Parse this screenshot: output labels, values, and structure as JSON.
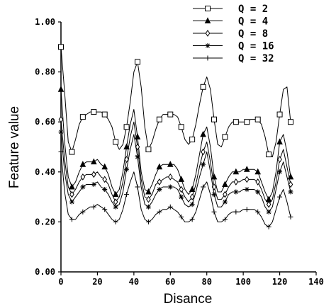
{
  "chart_data": {
    "type": "line",
    "title": "",
    "xlabel": "Disance",
    "ylabel": "Feature value",
    "xlim": [
      0,
      140
    ],
    "ylim": [
      0,
      1
    ],
    "xticks": [
      "0",
      "20",
      "40",
      "60",
      "80",
      "100",
      "120",
      "140"
    ],
    "yticks": [
      "0.00",
      "0.20",
      "0.40",
      "0.60",
      "0.80",
      "1.00"
    ],
    "legend_position": "top-right",
    "grid": false,
    "x": [
      0,
      2,
      4,
      6,
      8,
      10,
      12,
      14,
      16,
      18,
      20,
      22,
      24,
      26,
      28,
      30,
      32,
      34,
      36,
      38,
      40,
      42,
      44,
      46,
      48,
      50,
      52,
      54,
      56,
      58,
      60,
      62,
      64,
      66,
      68,
      70,
      72,
      74,
      76,
      78,
      80,
      82,
      84,
      86,
      88,
      90,
      92,
      94,
      96,
      98,
      100,
      102,
      104,
      106,
      108,
      110,
      112,
      114,
      116,
      118,
      120,
      122,
      124,
      126
    ],
    "series": [
      {
        "name": "Q =  2",
        "marker": "square",
        "values": [
          0.9,
          0.72,
          0.52,
          0.48,
          0.53,
          0.59,
          0.62,
          0.63,
          0.64,
          0.64,
          0.64,
          0.64,
          0.63,
          0.61,
          0.58,
          0.52,
          0.49,
          0.51,
          0.58,
          0.68,
          0.8,
          0.84,
          0.74,
          0.58,
          0.49,
          0.52,
          0.57,
          0.61,
          0.63,
          0.63,
          0.63,
          0.63,
          0.62,
          0.58,
          0.53,
          0.51,
          0.53,
          0.59,
          0.67,
          0.74,
          0.78,
          0.73,
          0.61,
          0.51,
          0.5,
          0.54,
          0.58,
          0.6,
          0.6,
          0.6,
          0.6,
          0.6,
          0.61,
          0.61,
          0.61,
          0.59,
          0.54,
          0.47,
          0.46,
          0.52,
          0.63,
          0.73,
          0.74,
          0.6
        ]
      },
      {
        "name": "Q =  4",
        "marker": "triangle",
        "values": [
          0.73,
          0.52,
          0.38,
          0.34,
          0.36,
          0.4,
          0.43,
          0.44,
          0.44,
          0.44,
          0.45,
          0.43,
          0.42,
          0.39,
          0.34,
          0.31,
          0.33,
          0.4,
          0.5,
          0.59,
          0.65,
          0.54,
          0.4,
          0.33,
          0.32,
          0.35,
          0.39,
          0.42,
          0.43,
          0.43,
          0.43,
          0.43,
          0.41,
          0.37,
          0.33,
          0.31,
          0.33,
          0.39,
          0.47,
          0.55,
          0.58,
          0.5,
          0.38,
          0.32,
          0.32,
          0.35,
          0.38,
          0.4,
          0.4,
          0.4,
          0.41,
          0.41,
          0.41,
          0.41,
          0.4,
          0.36,
          0.32,
          0.29,
          0.32,
          0.4,
          0.52,
          0.55,
          0.48,
          0.38
        ]
      },
      {
        "name": "Q =  8",
        "marker": "diamond",
        "values": [
          0.61,
          0.45,
          0.34,
          0.31,
          0.33,
          0.36,
          0.38,
          0.39,
          0.39,
          0.39,
          0.4,
          0.38,
          0.37,
          0.35,
          0.31,
          0.28,
          0.3,
          0.36,
          0.45,
          0.54,
          0.6,
          0.5,
          0.37,
          0.3,
          0.29,
          0.31,
          0.35,
          0.36,
          0.37,
          0.38,
          0.38,
          0.37,
          0.36,
          0.33,
          0.3,
          0.28,
          0.3,
          0.35,
          0.42,
          0.48,
          0.52,
          0.44,
          0.34,
          0.29,
          0.29,
          0.31,
          0.34,
          0.36,
          0.36,
          0.36,
          0.37,
          0.37,
          0.37,
          0.37,
          0.36,
          0.33,
          0.29,
          0.27,
          0.29,
          0.36,
          0.45,
          0.49,
          0.42,
          0.35
        ]
      },
      {
        "name": "Q = 16",
        "marker": "asterisk",
        "values": [
          0.56,
          0.4,
          0.31,
          0.28,
          0.3,
          0.32,
          0.34,
          0.35,
          0.35,
          0.35,
          0.36,
          0.34,
          0.33,
          0.31,
          0.28,
          0.26,
          0.27,
          0.32,
          0.41,
          0.49,
          0.55,
          0.46,
          0.34,
          0.27,
          0.26,
          0.28,
          0.31,
          0.33,
          0.34,
          0.34,
          0.34,
          0.34,
          0.33,
          0.3,
          0.27,
          0.26,
          0.27,
          0.32,
          0.38,
          0.43,
          0.48,
          0.4,
          0.31,
          0.26,
          0.26,
          0.28,
          0.31,
          0.32,
          0.32,
          0.32,
          0.33,
          0.33,
          0.33,
          0.33,
          0.32,
          0.3,
          0.26,
          0.24,
          0.26,
          0.33,
          0.4,
          0.44,
          0.38,
          0.32
        ]
      },
      {
        "name": "Q = 32",
        "marker": "plus",
        "values": [
          0.48,
          0.32,
          0.23,
          0.21,
          0.21,
          0.23,
          0.24,
          0.25,
          0.26,
          0.26,
          0.27,
          0.26,
          0.25,
          0.23,
          0.21,
          0.2,
          0.21,
          0.25,
          0.31,
          0.36,
          0.4,
          0.34,
          0.25,
          0.21,
          0.2,
          0.21,
          0.23,
          0.24,
          0.25,
          0.25,
          0.26,
          0.25,
          0.24,
          0.22,
          0.2,
          0.2,
          0.21,
          0.24,
          0.29,
          0.34,
          0.36,
          0.31,
          0.24,
          0.2,
          0.2,
          0.21,
          0.23,
          0.24,
          0.24,
          0.24,
          0.25,
          0.25,
          0.25,
          0.25,
          0.24,
          0.22,
          0.19,
          0.18,
          0.2,
          0.25,
          0.3,
          0.33,
          0.28,
          0.22
        ]
      }
    ]
  }
}
